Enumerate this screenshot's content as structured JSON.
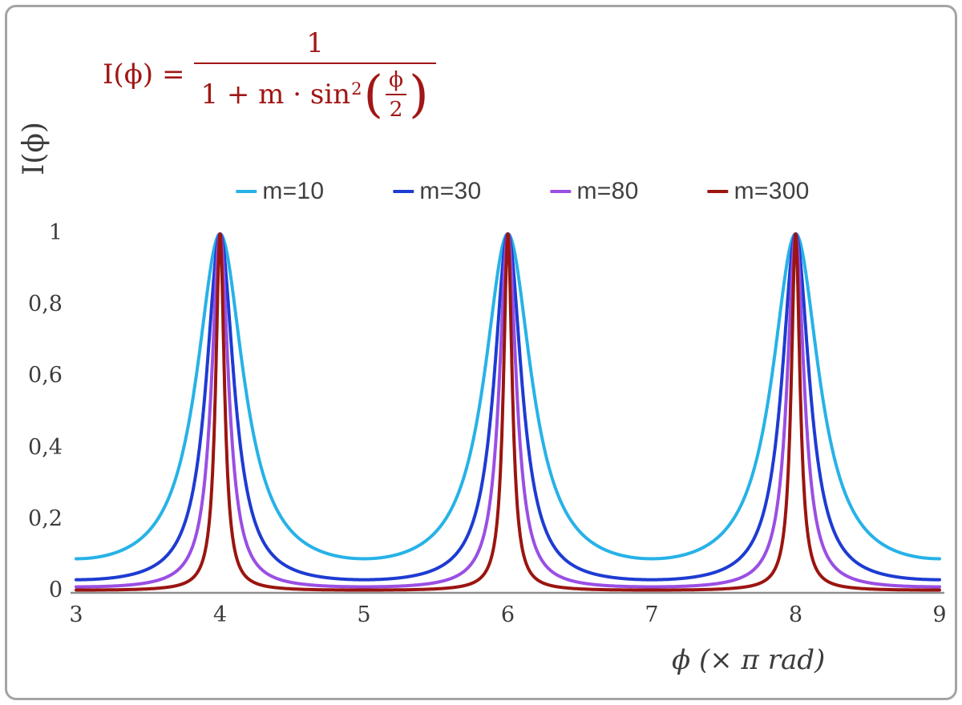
{
  "equation": {
    "lhs": "I(ϕ) =",
    "numerator": "1",
    "den_prefix": "1 + m · sin",
    "den_sup": "2",
    "open_paren": "(",
    "inner_numerator": "ϕ",
    "inner_denominator": "2",
    "close_paren": ")",
    "color": "#A11616"
  },
  "axes": {
    "y_title": "I(ϕ)",
    "x_title": "ϕ  (× π rad)"
  },
  "frame": {
    "border_color": "#A4A4A4",
    "axis_line_color": "#8E8E8E",
    "tick_label_color": "#3C3C3C"
  },
  "chart_data": {
    "type": "line",
    "formula": "I(phi) = 1 / (1 + m * sin^2(phi/2)), x axis in units of pi rad",
    "xlabel": "ϕ (× π rad)",
    "ylabel": "I(ϕ)",
    "xlim": [
      3,
      9
    ],
    "ylim": [
      0,
      1
    ],
    "grid": false,
    "legend_position": "top-center",
    "peaks_at_x": [
      4,
      6,
      8
    ],
    "peak_value": 1,
    "x_ticks": [
      {
        "label": "3",
        "value": 3
      },
      {
        "label": "4",
        "value": 4
      },
      {
        "label": "5",
        "value": 5
      },
      {
        "label": "6",
        "value": 6
      },
      {
        "label": "7",
        "value": 7
      },
      {
        "label": "8",
        "value": 8
      },
      {
        "label": "9",
        "value": 9
      }
    ],
    "y_ticks": [
      {
        "label": "0",
        "value": 0
      },
      {
        "label": "0,2",
        "value": 0.2
      },
      {
        "label": "0,4",
        "value": 0.4
      },
      {
        "label": "0,6",
        "value": 0.6
      },
      {
        "label": "0,8",
        "value": 0.8
      },
      {
        "label": "1",
        "value": 1
      }
    ],
    "series": [
      {
        "name": "m=10",
        "m": 10,
        "color": "#27B2E7",
        "min_value": 0.0909
      },
      {
        "name": "m=30",
        "m": 30,
        "color": "#1E3BD2",
        "min_value": 0.0323
      },
      {
        "name": "m=80",
        "m": 80,
        "color": "#9A4FE3",
        "min_value": 0.0123
      },
      {
        "name": "m=300",
        "m": 300,
        "color": "#9A1510",
        "min_value": 0.0033
      }
    ]
  }
}
